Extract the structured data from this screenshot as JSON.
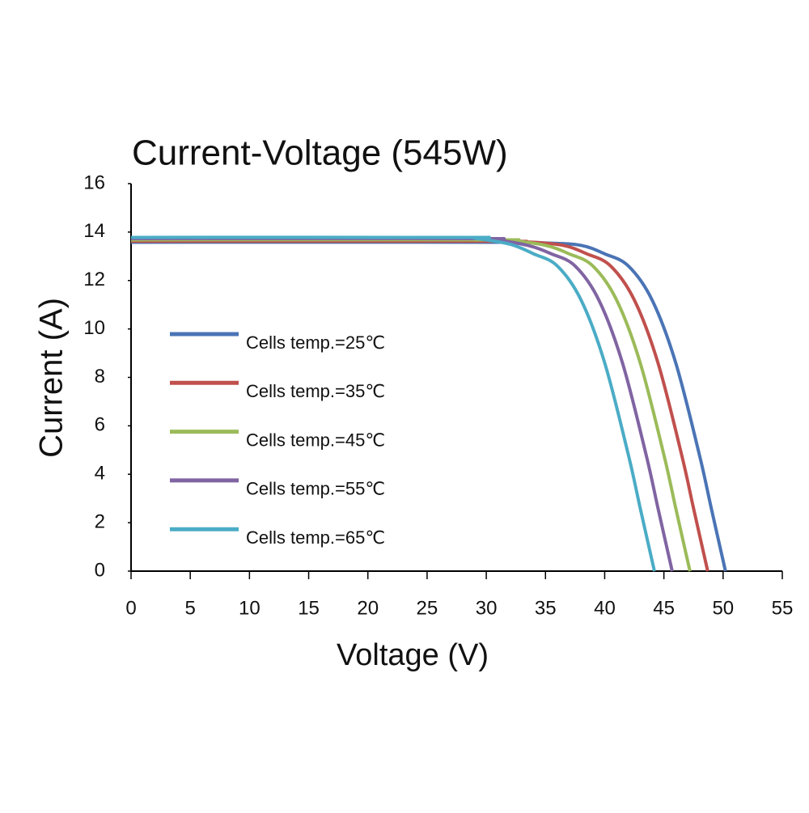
{
  "chart_data": {
    "type": "line",
    "title": "Current-Voltage  (545W)",
    "x_label": "Voltage (V)",
    "y_label": "Current (A)",
    "xlim": [
      0,
      55
    ],
    "xticks": [
      0,
      5,
      10,
      15,
      20,
      25,
      30,
      35,
      40,
      45,
      50,
      55
    ],
    "ylim": [
      0,
      16
    ],
    "yticks": [
      0,
      2,
      4,
      6,
      8,
      10,
      12,
      14,
      16
    ],
    "grid": false,
    "series": [
      {
        "name": "Cells temp.=25℃",
        "color": "#4a74b5",
        "x": [
          0,
          30,
          35,
          38,
          40,
          42,
          44,
          46,
          48,
          49,
          50.2
        ],
        "values": [
          13.58,
          13.58,
          13.55,
          13.45,
          13.1,
          12.6,
          11.2,
          8.6,
          4.8,
          2.6,
          0
        ]
      },
      {
        "name": "Cells temp.=35℃",
        "color": "#c0504d",
        "x": [
          0,
          30,
          33.5,
          36.5,
          38.5,
          40.5,
          42.5,
          44.5,
          46.5,
          47.5,
          48.7
        ],
        "values": [
          13.62,
          13.62,
          13.59,
          13.45,
          13.1,
          12.6,
          11.2,
          8.6,
          4.8,
          2.6,
          0
        ]
      },
      {
        "name": "Cells temp.=45℃",
        "color": "#9bbb59",
        "x": [
          0,
          30,
          32,
          35,
          37,
          39,
          41,
          43,
          45,
          46,
          47.2
        ],
        "values": [
          13.68,
          13.68,
          13.65,
          13.45,
          13.1,
          12.6,
          11.2,
          8.6,
          4.8,
          2.6,
          0
        ]
      },
      {
        "name": "Cells temp.=55℃",
        "color": "#8064a2",
        "x": [
          0,
          29,
          30.5,
          33.5,
          35.5,
          37.5,
          39.5,
          41.5,
          43.5,
          44.5,
          45.7
        ],
        "values": [
          13.73,
          13.73,
          13.7,
          13.45,
          13.1,
          12.6,
          11.2,
          8.6,
          4.8,
          2.6,
          0
        ]
      },
      {
        "name": "Cells temp.=65℃",
        "color": "#4bacc6",
        "x": [
          0,
          28,
          29,
          32,
          34,
          36,
          38,
          40,
          42,
          43,
          44.2
        ],
        "values": [
          13.78,
          13.78,
          13.75,
          13.5,
          13.1,
          12.6,
          11.2,
          8.6,
          4.8,
          2.6,
          0
        ]
      }
    ]
  }
}
